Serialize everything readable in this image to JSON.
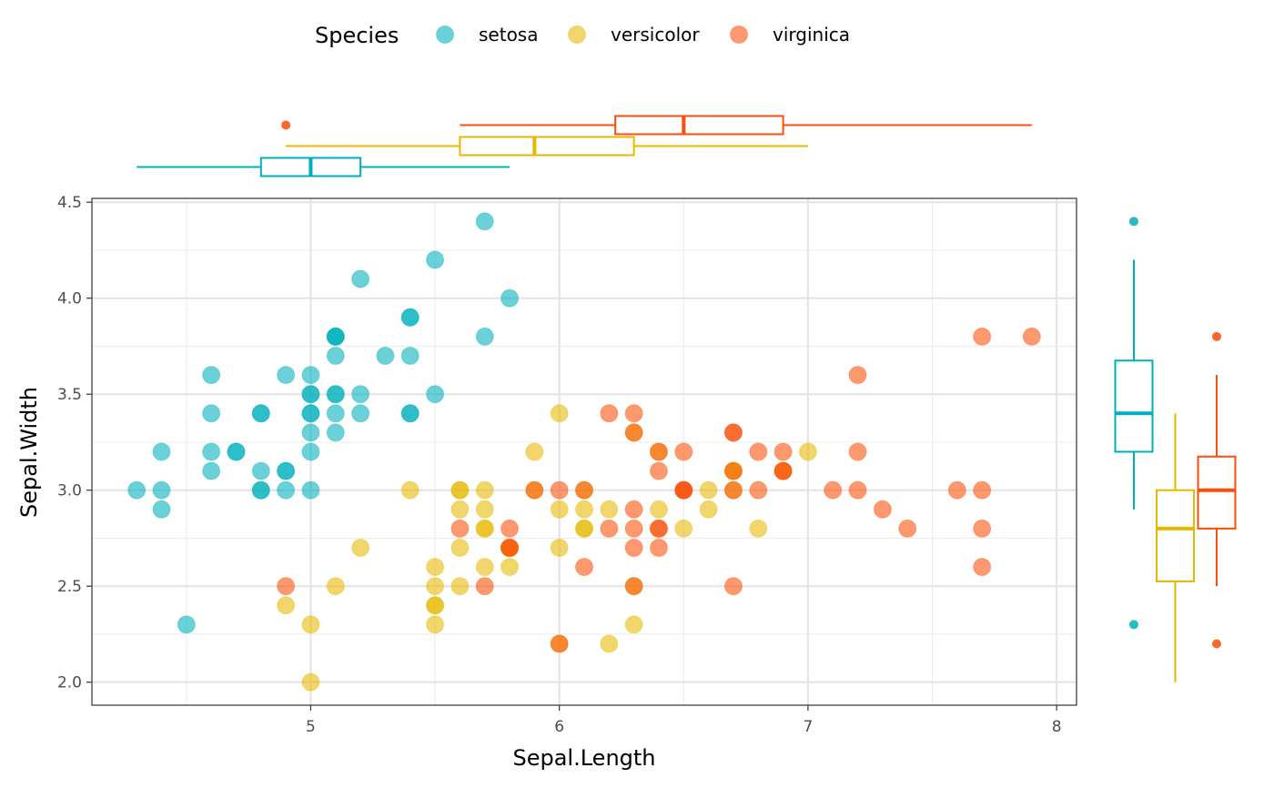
{
  "chart_data": {
    "type": "scatter",
    "xlabel": "Sepal.Length",
    "ylabel": "Sepal.Width",
    "xlim": [
      4.12,
      8.08
    ],
    "ylim": [
      1.88,
      4.52
    ],
    "x_ticks": [
      5,
      6,
      7,
      8
    ],
    "x_tick_labels": [
      "5",
      "6",
      "7",
      "8"
    ],
    "y_ticks": [
      2.0,
      2.5,
      3.0,
      3.5,
      4.0,
      4.5
    ],
    "y_tick_labels": [
      "2.0",
      "2.5",
      "3.0",
      "3.5",
      "4.0",
      "4.5"
    ],
    "grid": true,
    "legend": {
      "title": "Species",
      "placement": "top",
      "entries": [
        "setosa",
        "versicolor",
        "virginica"
      ]
    },
    "series": [
      {
        "name": "setosa",
        "color": "#00AFBB",
        "points": [
          [
            5.1,
            3.5
          ],
          [
            4.9,
            3.0
          ],
          [
            4.7,
            3.2
          ],
          [
            4.6,
            3.1
          ],
          [
            5.0,
            3.6
          ],
          [
            5.4,
            3.9
          ],
          [
            4.6,
            3.4
          ],
          [
            5.0,
            3.4
          ],
          [
            4.4,
            2.9
          ],
          [
            4.9,
            3.1
          ],
          [
            5.4,
            3.7
          ],
          [
            4.8,
            3.4
          ],
          [
            4.8,
            3.0
          ],
          [
            4.3,
            3.0
          ],
          [
            5.8,
            4.0
          ],
          [
            5.7,
            4.4
          ],
          [
            5.4,
            3.9
          ],
          [
            5.1,
            3.5
          ],
          [
            5.7,
            3.8
          ],
          [
            5.1,
            3.8
          ],
          [
            5.4,
            3.4
          ],
          [
            5.1,
            3.7
          ],
          [
            4.6,
            3.6
          ],
          [
            5.1,
            3.3
          ],
          [
            4.8,
            3.4
          ],
          [
            5.0,
            3.0
          ],
          [
            5.0,
            3.4
          ],
          [
            5.2,
            3.5
          ],
          [
            5.2,
            3.4
          ],
          [
            4.7,
            3.2
          ],
          [
            4.8,
            3.1
          ],
          [
            5.4,
            3.4
          ],
          [
            5.2,
            4.1
          ],
          [
            5.5,
            4.2
          ],
          [
            4.9,
            3.1
          ],
          [
            5.0,
            3.2
          ],
          [
            5.5,
            3.5
          ],
          [
            4.9,
            3.6
          ],
          [
            4.4,
            3.0
          ],
          [
            5.1,
            3.4
          ],
          [
            5.0,
            3.5
          ],
          [
            4.5,
            2.3
          ],
          [
            4.4,
            3.2
          ],
          [
            5.0,
            3.5
          ],
          [
            5.1,
            3.8
          ],
          [
            4.8,
            3.0
          ],
          [
            5.1,
            3.8
          ],
          [
            4.6,
            3.2
          ],
          [
            5.3,
            3.7
          ],
          [
            5.0,
            3.3
          ]
        ]
      },
      {
        "name": "versicolor",
        "color": "#E7B800",
        "points": [
          [
            7.0,
            3.2
          ],
          [
            6.4,
            3.2
          ],
          [
            6.9,
            3.1
          ],
          [
            5.5,
            2.3
          ],
          [
            6.5,
            2.8
          ],
          [
            5.7,
            2.8
          ],
          [
            6.3,
            3.3
          ],
          [
            4.9,
            2.4
          ],
          [
            6.6,
            2.9
          ],
          [
            5.2,
            2.7
          ],
          [
            5.0,
            2.0
          ],
          [
            5.9,
            3.0
          ],
          [
            6.0,
            2.2
          ],
          [
            6.1,
            2.9
          ],
          [
            5.6,
            2.9
          ],
          [
            6.7,
            3.1
          ],
          [
            5.6,
            3.0
          ],
          [
            5.8,
            2.7
          ],
          [
            6.2,
            2.2
          ],
          [
            5.6,
            2.5
          ],
          [
            5.9,
            3.2
          ],
          [
            6.1,
            2.8
          ],
          [
            6.3,
            2.5
          ],
          [
            6.1,
            2.8
          ],
          [
            6.4,
            2.9
          ],
          [
            6.6,
            3.0
          ],
          [
            6.8,
            2.8
          ],
          [
            6.7,
            3.0
          ],
          [
            6.0,
            2.9
          ],
          [
            5.7,
            2.6
          ],
          [
            5.5,
            2.4
          ],
          [
            5.5,
            2.4
          ],
          [
            5.8,
            2.7
          ],
          [
            6.0,
            2.7
          ],
          [
            5.4,
            3.0
          ],
          [
            6.0,
            3.4
          ],
          [
            6.7,
            3.1
          ],
          [
            6.3,
            2.3
          ],
          [
            5.6,
            3.0
          ],
          [
            5.5,
            2.5
          ],
          [
            5.5,
            2.6
          ],
          [
            6.1,
            3.0
          ],
          [
            5.8,
            2.6
          ],
          [
            5.0,
            2.3
          ],
          [
            5.6,
            2.7
          ],
          [
            5.7,
            3.0
          ],
          [
            5.7,
            2.9
          ],
          [
            6.2,
            2.9
          ],
          [
            5.1,
            2.5
          ],
          [
            5.7,
            2.8
          ]
        ]
      },
      {
        "name": "virginica",
        "color": "#FC4E07",
        "points": [
          [
            6.3,
            3.3
          ],
          [
            5.8,
            2.7
          ],
          [
            7.1,
            3.0
          ],
          [
            6.3,
            2.9
          ],
          [
            6.5,
            3.0
          ],
          [
            7.6,
            3.0
          ],
          [
            4.9,
            2.5
          ],
          [
            7.3,
            2.9
          ],
          [
            6.7,
            2.5
          ],
          [
            7.2,
            3.6
          ],
          [
            6.5,
            3.2
          ],
          [
            6.4,
            2.7
          ],
          [
            6.8,
            3.0
          ],
          [
            5.7,
            2.5
          ],
          [
            5.8,
            2.8
          ],
          [
            6.4,
            3.2
          ],
          [
            6.5,
            3.0
          ],
          [
            7.7,
            3.8
          ],
          [
            7.7,
            2.6
          ],
          [
            6.0,
            2.2
          ],
          [
            6.9,
            3.2
          ],
          [
            5.6,
            2.8
          ],
          [
            7.7,
            2.8
          ],
          [
            6.3,
            2.7
          ],
          [
            6.7,
            3.3
          ],
          [
            7.2,
            3.2
          ],
          [
            6.2,
            2.8
          ],
          [
            6.1,
            3.0
          ],
          [
            6.4,
            2.8
          ],
          [
            7.2,
            3.0
          ],
          [
            7.4,
            2.8
          ],
          [
            7.9,
            3.8
          ],
          [
            6.4,
            2.8
          ],
          [
            6.3,
            2.8
          ],
          [
            6.1,
            2.6
          ],
          [
            7.7,
            3.0
          ],
          [
            6.3,
            3.4
          ],
          [
            6.4,
            3.1
          ],
          [
            6.0,
            3.0
          ],
          [
            6.9,
            3.1
          ],
          [
            6.7,
            3.1
          ],
          [
            6.9,
            3.1
          ],
          [
            5.8,
            2.7
          ],
          [
            6.8,
            3.2
          ],
          [
            6.7,
            3.3
          ],
          [
            6.7,
            3.0
          ],
          [
            6.3,
            2.5
          ],
          [
            6.5,
            3.0
          ],
          [
            6.2,
            3.4
          ],
          [
            5.9,
            3.0
          ]
        ]
      }
    ],
    "boxplots": {
      "x": [
        {
          "name": "setosa",
          "color": "#00AFBB",
          "min": 4.3,
          "q1": 4.8,
          "median": 5.0,
          "q3": 5.2,
          "max": 5.8,
          "outliers": []
        },
        {
          "name": "versicolor",
          "color": "#E7B800",
          "min": 4.9,
          "q1": 5.6,
          "median": 5.9,
          "q3": 6.3,
          "max": 7.0,
          "outliers": []
        },
        {
          "name": "virginica",
          "color": "#FC4E07",
          "min": 5.6,
          "q1": 6.225,
          "median": 6.5,
          "q3": 6.9,
          "max": 7.9,
          "outliers": [
            4.9
          ]
        }
      ],
      "y": [
        {
          "name": "setosa",
          "color": "#00AFBB",
          "min": 2.9,
          "q1": 3.2,
          "median": 3.4,
          "q3": 3.675,
          "max": 4.2,
          "outliers": [
            4.4,
            2.3
          ]
        },
        {
          "name": "versicolor",
          "color": "#E7B800",
          "min": 2.0,
          "q1": 2.525,
          "median": 2.8,
          "q3": 3.0,
          "max": 3.4,
          "outliers": []
        },
        {
          "name": "virginica",
          "color": "#FC4E07",
          "min": 2.5,
          "q1": 2.8,
          "median": 3.0,
          "q3": 3.175,
          "max": 3.6,
          "outliers": [
            3.8,
            2.2
          ]
        }
      ]
    }
  }
}
